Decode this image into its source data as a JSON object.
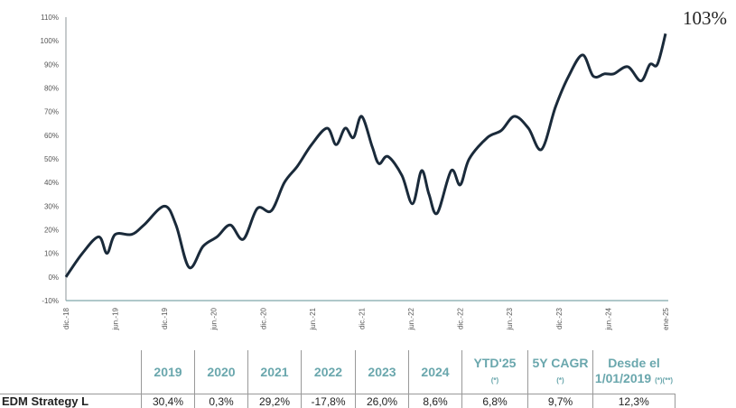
{
  "chart_data": {
    "type": "line",
    "title": "",
    "ylabel": "",
    "xlabel": "",
    "ylim": [
      -10,
      110
    ],
    "yticks": [
      "-10%",
      "0%",
      "10%",
      "20%",
      "30%",
      "40%",
      "50%",
      "60%",
      "70%",
      "80%",
      "90%",
      "100%",
      "110%"
    ],
    "xticks": [
      "dic.-18",
      "jun.-19",
      "dic.-19",
      "jun.-20",
      "dic.-20",
      "jun.-21",
      "dic.-21",
      "jun.-22",
      "dic.-22",
      "jun.-23",
      "dic.-23",
      "jun.-24",
      "ene-25"
    ],
    "x_months_from_dec18": [
      0,
      2,
      4,
      5,
      6,
      8,
      9.5,
      12,
      13.4,
      15,
      16.7,
      18.4,
      20,
      21.6,
      23.3,
      25,
      26.6,
      28.2,
      29.9,
      31.8,
      32.9,
      34,
      35,
      36,
      37.3,
      38.1,
      39.2,
      40.9,
      42.2,
      43.3,
      44.2,
      45.2,
      46.9,
      48,
      49.1,
      51.3,
      53,
      54.6,
      56.3,
      57.9,
      59.6,
      61.2,
      62.9,
      64.2,
      65.6,
      66.7,
      68.4,
      70,
      71.1,
      72,
      73
    ],
    "values": [
      0,
      10,
      17,
      10,
      18,
      18,
      22,
      30,
      22,
      4,
      13,
      17,
      22,
      16,
      29,
      28,
      40,
      47,
      56,
      63,
      56,
      63,
      59,
      68,
      55,
      48,
      51,
      43,
      31,
      45,
      35,
      27,
      45,
      39,
      50,
      59,
      62,
      68,
      63,
      54,
      72,
      85,
      94,
      85,
      86,
      86,
      89,
      83,
      90,
      90,
      103
    ],
    "series_color": "#1a2a3a",
    "final_label": "103%"
  },
  "table": {
    "headers": [
      "2019",
      "2020",
      "2021",
      "2022",
      "2023",
      "2024"
    ],
    "ytd": {
      "label": "YTD'25",
      "note": "(*)"
    },
    "cagr": {
      "label": "5Y CAGR",
      "note": "(*)"
    },
    "since": {
      "label1": "Desde el",
      "label2": "1/01/2019",
      "note": "(*)(**)"
    },
    "row_label": "EDM Strategy L",
    "row": [
      "30,4%",
      "0,3%",
      "29,2%",
      "-17,8%",
      "26,0%",
      "8,6%",
      "6,8%",
      "9,7%",
      "12,3%"
    ]
  }
}
